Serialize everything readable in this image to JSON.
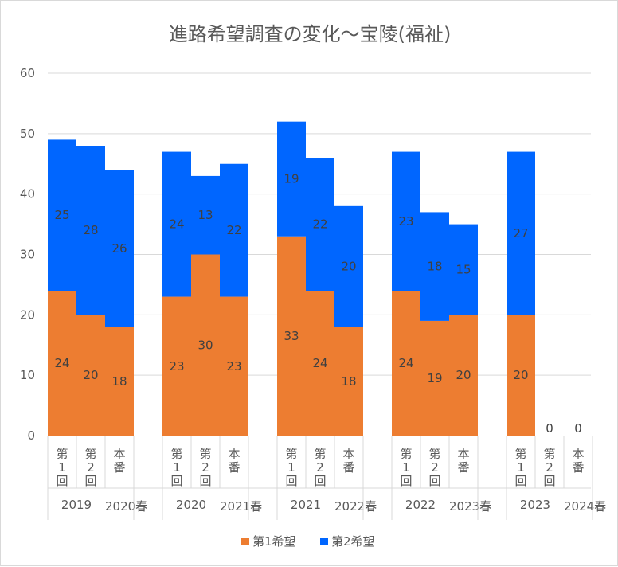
{
  "chart_data": {
    "type": "bar",
    "stacked": true,
    "title": "進路希望調査の変化～宝陵(福祉)",
    "ylim": [
      0,
      60
    ],
    "yticks": [
      0,
      10,
      20,
      30,
      40,
      50,
      60
    ],
    "grid": true,
    "legend_position": "bottom",
    "groups": [
      {
        "label_left": "2019",
        "label_right": "2020春",
        "categories": [
          "第1回",
          "第2回",
          "本番"
        ]
      },
      {
        "label_left": "2020",
        "label_right": "2021春",
        "categories": [
          "第1回",
          "第2回",
          "本番"
        ]
      },
      {
        "label_left": "2021",
        "label_right": "2022春",
        "categories": [
          "第1回",
          "第2回",
          "本番"
        ]
      },
      {
        "label_left": "2022",
        "label_right": "2023春",
        "categories": [
          "第1回",
          "第2回",
          "本番"
        ]
      },
      {
        "label_left": "2023",
        "label_right": "2024春",
        "categories": [
          "第1回",
          "第2回",
          "本番"
        ]
      }
    ],
    "series": [
      {
        "name": "第1希望",
        "color": "#ED7D31",
        "values": [
          [
            24,
            20,
            18
          ],
          [
            23,
            30,
            23
          ],
          [
            33,
            24,
            18
          ],
          [
            24,
            19,
            20
          ],
          [
            20,
            null,
            null
          ]
        ],
        "labels": [
          [
            "24",
            "20",
            "18"
          ],
          [
            "23",
            "30",
            "23"
          ],
          [
            "33",
            "24",
            "18"
          ],
          [
            "24",
            "19",
            "20"
          ],
          [
            "20",
            "",
            ""
          ]
        ]
      },
      {
        "name": "第2希望",
        "color": "#0066FF",
        "values": [
          [
            25,
            28,
            26
          ],
          [
            24,
            13,
            22
          ],
          [
            19,
            22,
            20
          ],
          [
            23,
            18,
            15
          ],
          [
            27,
            0,
            0
          ]
        ],
        "labels": [
          [
            "25",
            "28",
            "26"
          ],
          [
            "24",
            "13",
            "22"
          ],
          [
            "19",
            "22",
            "20"
          ],
          [
            "23",
            "18",
            "15"
          ],
          [
            "27",
            "0",
            "0"
          ]
        ]
      }
    ]
  }
}
